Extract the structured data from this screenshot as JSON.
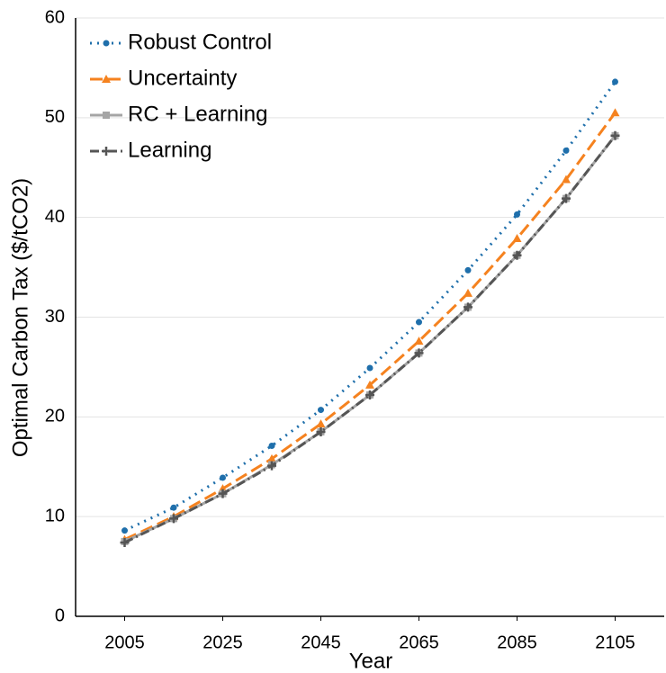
{
  "chart_data": {
    "type": "line",
    "x": [
      2005,
      2015,
      2025,
      2035,
      2045,
      2055,
      2065,
      2075,
      2085,
      2095,
      2105
    ],
    "xlabel": "Year",
    "ylabel": "Optimal Carbon Tax ($/tCO2)",
    "xlim": [
      1995,
      2115
    ],
    "xticks": [
      2005,
      2025,
      2045,
      2065,
      2085,
      2105
    ],
    "ylim": [
      0,
      60
    ],
    "yticks": [
      0,
      10,
      20,
      30,
      40,
      50,
      60
    ],
    "grid": true,
    "legend": "upper left",
    "series": [
      {
        "name": "Robust Control",
        "color": "#1f6fab",
        "values": [
          8.6,
          10.9,
          13.9,
          17.1,
          20.7,
          24.9,
          29.5,
          34.7,
          40.3,
          46.7,
          53.6
        ]
      },
      {
        "name": "Uncertainty",
        "color": "#f5821f",
        "values": [
          7.7,
          10.0,
          12.8,
          15.8,
          19.3,
          23.2,
          27.6,
          32.4,
          37.9,
          43.8,
          50.5
        ]
      },
      {
        "name": "RC + Learning",
        "color": "#a5a5a5",
        "values": [
          7.5,
          9.8,
          12.3,
          15.2,
          18.5,
          22.2,
          26.4,
          31.0,
          36.2,
          41.9,
          48.2
        ]
      },
      {
        "name": "Learning",
        "color": "#555555",
        "values": [
          7.4,
          9.8,
          12.3,
          15.1,
          18.5,
          22.2,
          26.4,
          31.0,
          36.2,
          41.9,
          48.2
        ]
      }
    ]
  }
}
